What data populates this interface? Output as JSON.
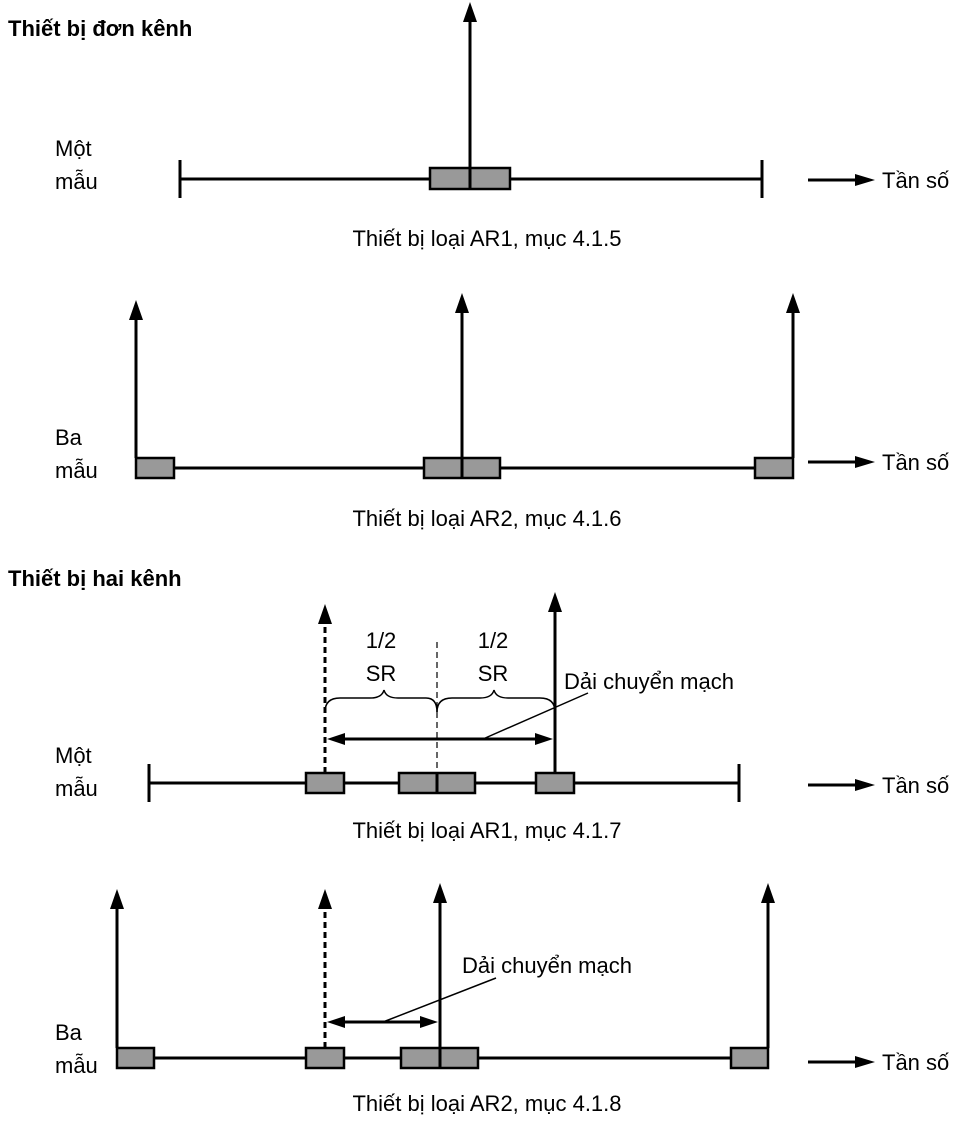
{
  "sections": {
    "single_channel": "Thiết bị đơn kênh",
    "dual_channel": "Thiết bị hai kênh"
  },
  "panels": [
    {
      "sample_label": [
        "Một",
        "mẫu"
      ],
      "axis_label": "Tần số",
      "caption": "Thiết bị loại AR1, mục 4.1.5"
    },
    {
      "sample_label": [
        "Ba",
        "mẫu"
      ],
      "axis_label": "Tần số",
      "caption": "Thiết bị loại AR2, mục 4.1.6"
    },
    {
      "sample_label": [
        "Một",
        "mẫu"
      ],
      "axis_label": "Tần số",
      "caption": "Thiết bị loại AR1, mục 4.1.7",
      "half_sr": [
        [
          "1/2",
          "SR"
        ],
        [
          "1/2",
          "SR"
        ]
      ],
      "switching_range": "Dải chuyển mạch"
    },
    {
      "sample_label": [
        "Ba",
        "mẫu"
      ],
      "axis_label": "Tần số",
      "caption": "Thiết bị loại AR2, mục 4.1.8",
      "switching_range": "Dải chuyển mạch"
    }
  ],
  "colors": {
    "box_fill": "#999999",
    "line": "#000000"
  }
}
